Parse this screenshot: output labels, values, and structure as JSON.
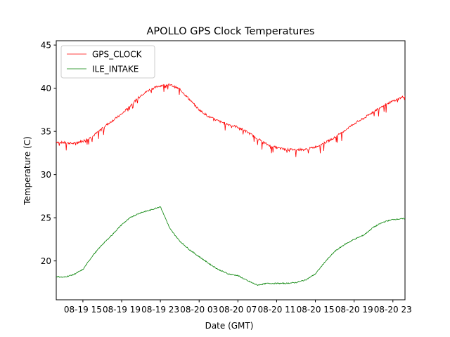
{
  "chart_data": {
    "type": "line",
    "title": "APOLLO GPS Clock Temperatures",
    "xlabel": "Date (GMT)",
    "ylabel": "Temperature (C)",
    "xlim": [
      "2018-08-19 12:15",
      "2018-08-21 00:15"
    ],
    "ylim": [
      15.5,
      45.5
    ],
    "x_tick_values": [
      "2018-08-19 15:00",
      "2018-08-19 19:00",
      "2018-08-19 23:00",
      "2018-08-20 03:00",
      "2018-08-20 07:00",
      "2018-08-20 11:00",
      "2018-08-20 15:00",
      "2018-08-20 19:00",
      "2018-08-20 23:00"
    ],
    "x_tick_labels": [
      "08-19 15",
      "08-19 19",
      "08-19 23",
      "08-20 03",
      "08-20 07",
      "08-20 11",
      "08-20 15",
      "08-20 19",
      "08-20 23"
    ],
    "y_ticks": [
      20,
      25,
      30,
      35,
      40,
      45
    ],
    "legend_position": "upper-left",
    "grid": false,
    "series": [
      {
        "name": "GPS_CLOCK",
        "color": "#ff0000",
        "x": [
          "2018-08-19 12:15",
          "2018-08-19 13:00",
          "2018-08-19 14:00",
          "2018-08-19 15:00",
          "2018-08-19 16:00",
          "2018-08-19 17:00",
          "2018-08-19 18:00",
          "2018-08-19 19:00",
          "2018-08-19 20:00",
          "2018-08-19 21:00",
          "2018-08-19 22:00",
          "2018-08-19 23:00",
          "2018-08-20 00:00",
          "2018-08-20 01:00",
          "2018-08-20 02:00",
          "2018-08-20 03:00",
          "2018-08-20 04:00",
          "2018-08-20 05:00",
          "2018-08-20 06:00",
          "2018-08-20 07:00",
          "2018-08-20 08:00",
          "2018-08-20 09:00",
          "2018-08-20 10:00",
          "2018-08-20 11:00",
          "2018-08-20 12:00",
          "2018-08-20 13:00",
          "2018-08-20 14:00",
          "2018-08-20 15:00",
          "2018-08-20 16:00",
          "2018-08-20 17:00",
          "2018-08-20 18:00",
          "2018-08-20 19:00",
          "2018-08-20 20:00",
          "2018-08-20 21:00",
          "2018-08-20 22:00",
          "2018-08-20 23:00",
          "2018-08-21 00:15"
        ],
        "y": [
          33.8,
          33.7,
          33.6,
          33.9,
          34.4,
          35.4,
          36.2,
          37.0,
          38.1,
          39.2,
          39.9,
          40.3,
          40.4,
          39.9,
          38.7,
          37.5,
          36.7,
          36.2,
          35.8,
          35.5,
          34.9,
          34.2,
          33.5,
          33.1,
          32.9,
          32.9,
          32.9,
          33.2,
          33.7,
          34.3,
          35.1,
          35.9,
          36.5,
          37.3,
          38.0,
          38.5,
          39.1
        ]
      },
      {
        "name": "ILE_INTAKE",
        "color": "#008000",
        "x": [
          "2018-08-19 12:15",
          "2018-08-19 13:00",
          "2018-08-19 14:00",
          "2018-08-19 15:00",
          "2018-08-19 16:00",
          "2018-08-19 17:00",
          "2018-08-19 18:00",
          "2018-08-19 19:00",
          "2018-08-19 20:00",
          "2018-08-19 21:00",
          "2018-08-19 22:00",
          "2018-08-19 23:00",
          "2018-08-20 00:00",
          "2018-08-20 01:00",
          "2018-08-20 02:00",
          "2018-08-20 03:00",
          "2018-08-20 04:00",
          "2018-08-20 05:00",
          "2018-08-20 06:00",
          "2018-08-20 07:00",
          "2018-08-20 08:00",
          "2018-08-20 09:00",
          "2018-08-20 10:00",
          "2018-08-20 11:00",
          "2018-08-20 12:00",
          "2018-08-20 13:00",
          "2018-08-20 14:00",
          "2018-08-20 15:00",
          "2018-08-20 16:00",
          "2018-08-20 17:00",
          "2018-08-20 18:00",
          "2018-08-20 19:00",
          "2018-08-20 20:00",
          "2018-08-20 21:00",
          "2018-08-20 22:00",
          "2018-08-20 23:00",
          "2018-08-21 00:15"
        ],
        "y": [
          18.2,
          18.1,
          18.4,
          19.0,
          20.6,
          21.9,
          23.0,
          24.2,
          25.1,
          25.6,
          25.9,
          26.3,
          23.7,
          22.3,
          21.3,
          20.5,
          19.7,
          19.0,
          18.5,
          18.3,
          17.7,
          17.2,
          17.4,
          17.4,
          17.4,
          17.5,
          17.8,
          18.5,
          19.9,
          21.1,
          21.9,
          22.5,
          23.0,
          23.9,
          24.5,
          24.8,
          24.9
        ]
      }
    ]
  }
}
